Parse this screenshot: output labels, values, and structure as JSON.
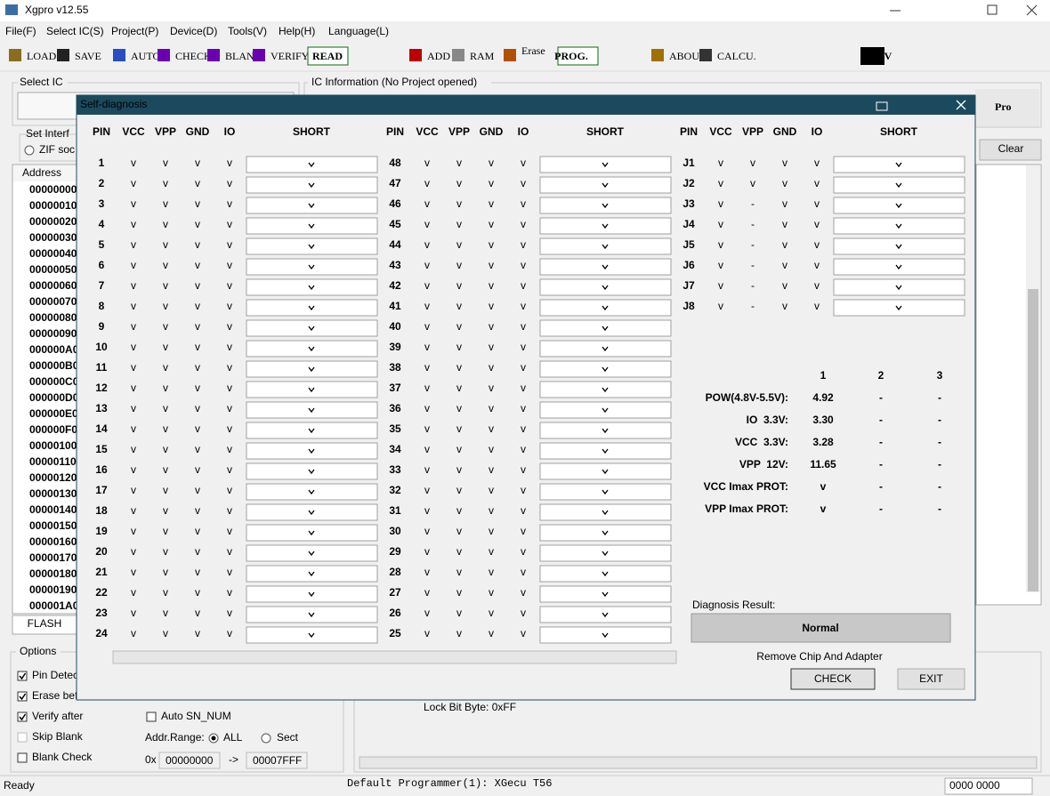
{
  "window": {
    "title": "Xgpro v12.55"
  },
  "menu": [
    "File(F)",
    "Select IC(S)",
    "Project(P)",
    "Device(D)",
    "Tools(V)",
    "Help(H)",
    "Language(L)"
  ],
  "toolbar": [
    "LOAD",
    "SAVE",
    "AUTO",
    "CHECK",
    "BLANK",
    "VERIFY",
    "READ",
    "ADD",
    "RAM",
    "Erase",
    "PROG.",
    "ABOUT",
    "CALCU.",
    "TV"
  ],
  "main": {
    "select_ic": "Select IC",
    "ic_info": "IC Information (No Project opened)",
    "brand": "Pro",
    "set_interface": "Set Interf",
    "zif": "ZIF soc",
    "address_header": "Address",
    "addresses": [
      "00000000",
      "00000010",
      "00000020",
      "00000030",
      "00000040",
      "00000050",
      "00000060",
      "00000070",
      "00000080",
      "00000090",
      "000000A0",
      "000000B0",
      "000000C0",
      "000000D0",
      "000000E0",
      "000000F0",
      "00000100",
      "00000110",
      "00000120",
      "00000130",
      "00000140",
      "00000150",
      "00000160",
      "00000170",
      "00000180",
      "00000190",
      "000001A0"
    ],
    "clear": "Clear",
    "tab": "FLASH",
    "options": "Options",
    "checks": [
      "Pin Detec",
      "Erase bef",
      "Verify after",
      "Skip Blank",
      "Blank Check"
    ],
    "checked": [
      true,
      true,
      true,
      false,
      false
    ],
    "auto_sn": "Auto SN_NUM",
    "addr_range": "Addr.Range:",
    "all": "ALL",
    "sect": "Sect",
    "hex_prefix": "0x",
    "addr_from": "00000000",
    "arrow": "->",
    "addr_to": "00007FFF",
    "lock_bit": "Lock Bit Byte: 0xFF"
  },
  "status": {
    "ready": "Ready",
    "programmer": "Default Programmer(1): XGecu T56",
    "counter": "0000 0000"
  },
  "dialog": {
    "title": "Self-diagnosis",
    "columns": [
      "PIN",
      "VCC",
      "VPP",
      "GND",
      "IO",
      "SHORT"
    ],
    "groups": [
      [
        [
          "1",
          "v",
          "v",
          "v",
          "v"
        ],
        [
          "2",
          "v",
          "v",
          "v",
          "v"
        ],
        [
          "3",
          "v",
          "v",
          "v",
          "v"
        ],
        [
          "4",
          "v",
          "v",
          "v",
          "v"
        ],
        [
          "5",
          "v",
          "v",
          "v",
          "v"
        ],
        [
          "6",
          "v",
          "v",
          "v",
          "v"
        ],
        [
          "7",
          "v",
          "v",
          "v",
          "v"
        ],
        [
          "8",
          "v",
          "v",
          "v",
          "v"
        ],
        [
          "9",
          "v",
          "v",
          "v",
          "v"
        ],
        [
          "10",
          "v",
          "v",
          "v",
          "v"
        ],
        [
          "11",
          "v",
          "v",
          "v",
          "v"
        ],
        [
          "12",
          "v",
          "v",
          "v",
          "v"
        ],
        [
          "13",
          "v",
          "v",
          "v",
          "v"
        ],
        [
          "14",
          "v",
          "v",
          "v",
          "v"
        ],
        [
          "15",
          "v",
          "v",
          "v",
          "v"
        ],
        [
          "16",
          "v",
          "v",
          "v",
          "v"
        ],
        [
          "17",
          "v",
          "v",
          "v",
          "v"
        ],
        [
          "18",
          "v",
          "v",
          "v",
          "v"
        ],
        [
          "19",
          "v",
          "v",
          "v",
          "v"
        ],
        [
          "20",
          "v",
          "v",
          "v",
          "v"
        ],
        [
          "21",
          "v",
          "v",
          "v",
          "v"
        ],
        [
          "22",
          "v",
          "v",
          "v",
          "v"
        ],
        [
          "23",
          "v",
          "v",
          "v",
          "v"
        ],
        [
          "24",
          "v",
          "v",
          "v",
          "v"
        ]
      ],
      [
        [
          "48",
          "v",
          "v",
          "v",
          "v"
        ],
        [
          "47",
          "v",
          "v",
          "v",
          "v"
        ],
        [
          "46",
          "v",
          "v",
          "v",
          "v"
        ],
        [
          "45",
          "v",
          "v",
          "v",
          "v"
        ],
        [
          "44",
          "v",
          "v",
          "v",
          "v"
        ],
        [
          "43",
          "v",
          "v",
          "v",
          "v"
        ],
        [
          "42",
          "v",
          "v",
          "v",
          "v"
        ],
        [
          "41",
          "v",
          "v",
          "v",
          "v"
        ],
        [
          "40",
          "v",
          "v",
          "v",
          "v"
        ],
        [
          "39",
          "v",
          "v",
          "v",
          "v"
        ],
        [
          "38",
          "v",
          "v",
          "v",
          "v"
        ],
        [
          "37",
          "v",
          "v",
          "v",
          "v"
        ],
        [
          "36",
          "v",
          "v",
          "v",
          "v"
        ],
        [
          "35",
          "v",
          "v",
          "v",
          "v"
        ],
        [
          "34",
          "v",
          "v",
          "v",
          "v"
        ],
        [
          "33",
          "v",
          "v",
          "v",
          "v"
        ],
        [
          "32",
          "v",
          "v",
          "v",
          "v"
        ],
        [
          "31",
          "v",
          "v",
          "v",
          "v"
        ],
        [
          "30",
          "v",
          "v",
          "v",
          "v"
        ],
        [
          "29",
          "v",
          "v",
          "v",
          "v"
        ],
        [
          "28",
          "v",
          "v",
          "v",
          "v"
        ],
        [
          "27",
          "v",
          "v",
          "v",
          "v"
        ],
        [
          "26",
          "v",
          "v",
          "v",
          "v"
        ],
        [
          "25",
          "v",
          "v",
          "v",
          "v"
        ]
      ],
      [
        [
          "J1",
          "v",
          "v",
          "v",
          "v"
        ],
        [
          "J2",
          "v",
          "v",
          "v",
          "v"
        ],
        [
          "J3",
          "v",
          "-",
          "v",
          "v"
        ],
        [
          "J4",
          "v",
          "-",
          "v",
          "v"
        ],
        [
          "J5",
          "v",
          "-",
          "v",
          "v"
        ],
        [
          "J6",
          "v",
          "-",
          "v",
          "v"
        ],
        [
          "J7",
          "v",
          "-",
          "v",
          "v"
        ],
        [
          "J8",
          "v",
          "-",
          "v",
          "v"
        ]
      ]
    ],
    "voltage": {
      "headers": [
        "1",
        "2",
        "3"
      ],
      "rows": [
        [
          "POW(4.8V-5.5V):",
          "4.92",
          "-",
          "-"
        ],
        [
          "IO  3.3V:",
          "3.30",
          "-",
          "-"
        ],
        [
          "VCC  3.3V:",
          "3.28",
          "-",
          "-"
        ],
        [
          "VPP  12V:",
          "11.65",
          "-",
          "-"
        ],
        [
          "VCC Imax PROT:",
          "v",
          "-",
          "-"
        ],
        [
          "VPP Imax PROT:",
          "v",
          "-",
          "-"
        ]
      ]
    },
    "result_label": "Diagnosis Result:",
    "result": "Normal",
    "hint": "Remove Chip And Adapter",
    "buttons": [
      "CHECK",
      "EXIT"
    ]
  }
}
